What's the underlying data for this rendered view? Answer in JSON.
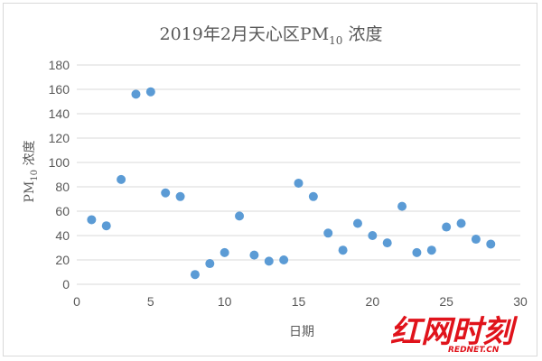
{
  "chart_data": {
    "type": "scatter",
    "title": {
      "main": "2019年2月天心区PM",
      "subscript": "10",
      "suffix": " 浓度"
    },
    "xlabel": "日期",
    "ylabel": {
      "main": "PM",
      "subscript": "10",
      "suffix": " 浓度"
    },
    "xlim": [
      0,
      30
    ],
    "ylim": [
      0,
      180
    ],
    "x_ticks": [
      0,
      5,
      10,
      15,
      20,
      25,
      30
    ],
    "y_ticks": [
      0,
      20,
      40,
      60,
      80,
      100,
      120,
      140,
      160,
      180
    ],
    "grid": "horizontal",
    "legend": "none",
    "marker_color": "#5b9bd5",
    "series": [
      {
        "x": [
          1,
          2,
          3,
          4,
          5,
          6,
          7,
          8,
          9,
          10,
          11,
          12,
          13,
          14,
          15,
          16,
          17,
          18,
          19,
          20,
          21,
          22,
          23,
          24,
          25,
          26,
          27,
          28
        ],
        "y": [
          53,
          48,
          86,
          156,
          158,
          75,
          72,
          8,
          17,
          26,
          56,
          24,
          19,
          20,
          83,
          72,
          42,
          28,
          50,
          40,
          34,
          64,
          26,
          28,
          47,
          50,
          37,
          33
        ]
      }
    ]
  },
  "watermark": {
    "logo_text": "红网时刻",
    "sub_text": "REDNET.CN",
    "color": "#e0131b"
  }
}
